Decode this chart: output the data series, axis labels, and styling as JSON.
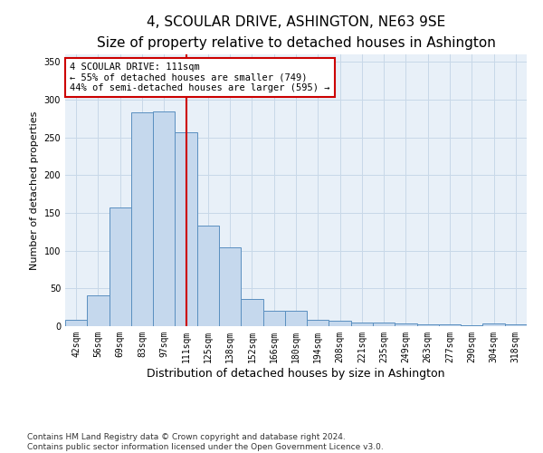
{
  "title": "4, SCOULAR DRIVE, ASHINGTON, NE63 9SE",
  "subtitle": "Size of property relative to detached houses in Ashington",
  "xlabel": "Distribution of detached houses by size in Ashington",
  "ylabel": "Number of detached properties",
  "categories": [
    "42sqm",
    "56sqm",
    "69sqm",
    "83sqm",
    "97sqm",
    "111sqm",
    "125sqm",
    "138sqm",
    "152sqm",
    "166sqm",
    "180sqm",
    "194sqm",
    "208sqm",
    "221sqm",
    "235sqm",
    "249sqm",
    "263sqm",
    "277sqm",
    "290sqm",
    "304sqm",
    "318sqm"
  ],
  "values": [
    9,
    41,
    157,
    283,
    284,
    257,
    133,
    104,
    36,
    20,
    21,
    8,
    7,
    5,
    5,
    4,
    3,
    3,
    1,
    4,
    2
  ],
  "highlight_index": 5,
  "bar_color": "#c5d8ed",
  "bar_edge_color": "#5a8fc0",
  "highlight_line_color": "#cc0000",
  "annotation_text": "4 SCOULAR DRIVE: 111sqm\n← 55% of detached houses are smaller (749)\n44% of semi-detached houses are larger (595) →",
  "annotation_box_edge_color": "#cc0000",
  "ylim": [
    0,
    360
  ],
  "yticks": [
    0,
    50,
    100,
    150,
    200,
    250,
    300,
    350
  ],
  "footer_line1": "Contains HM Land Registry data © Crown copyright and database right 2024.",
  "footer_line2": "Contains public sector information licensed under the Open Government Licence v3.0.",
  "title_fontsize": 11,
  "subtitle_fontsize": 9.5,
  "xlabel_fontsize": 9,
  "ylabel_fontsize": 8,
  "tick_fontsize": 7,
  "annotation_fontsize": 7.5,
  "footer_fontsize": 6.5,
  "bg_color": "#ffffff",
  "plot_bg_color": "#e8f0f8",
  "grid_color": "#c8d8e8"
}
